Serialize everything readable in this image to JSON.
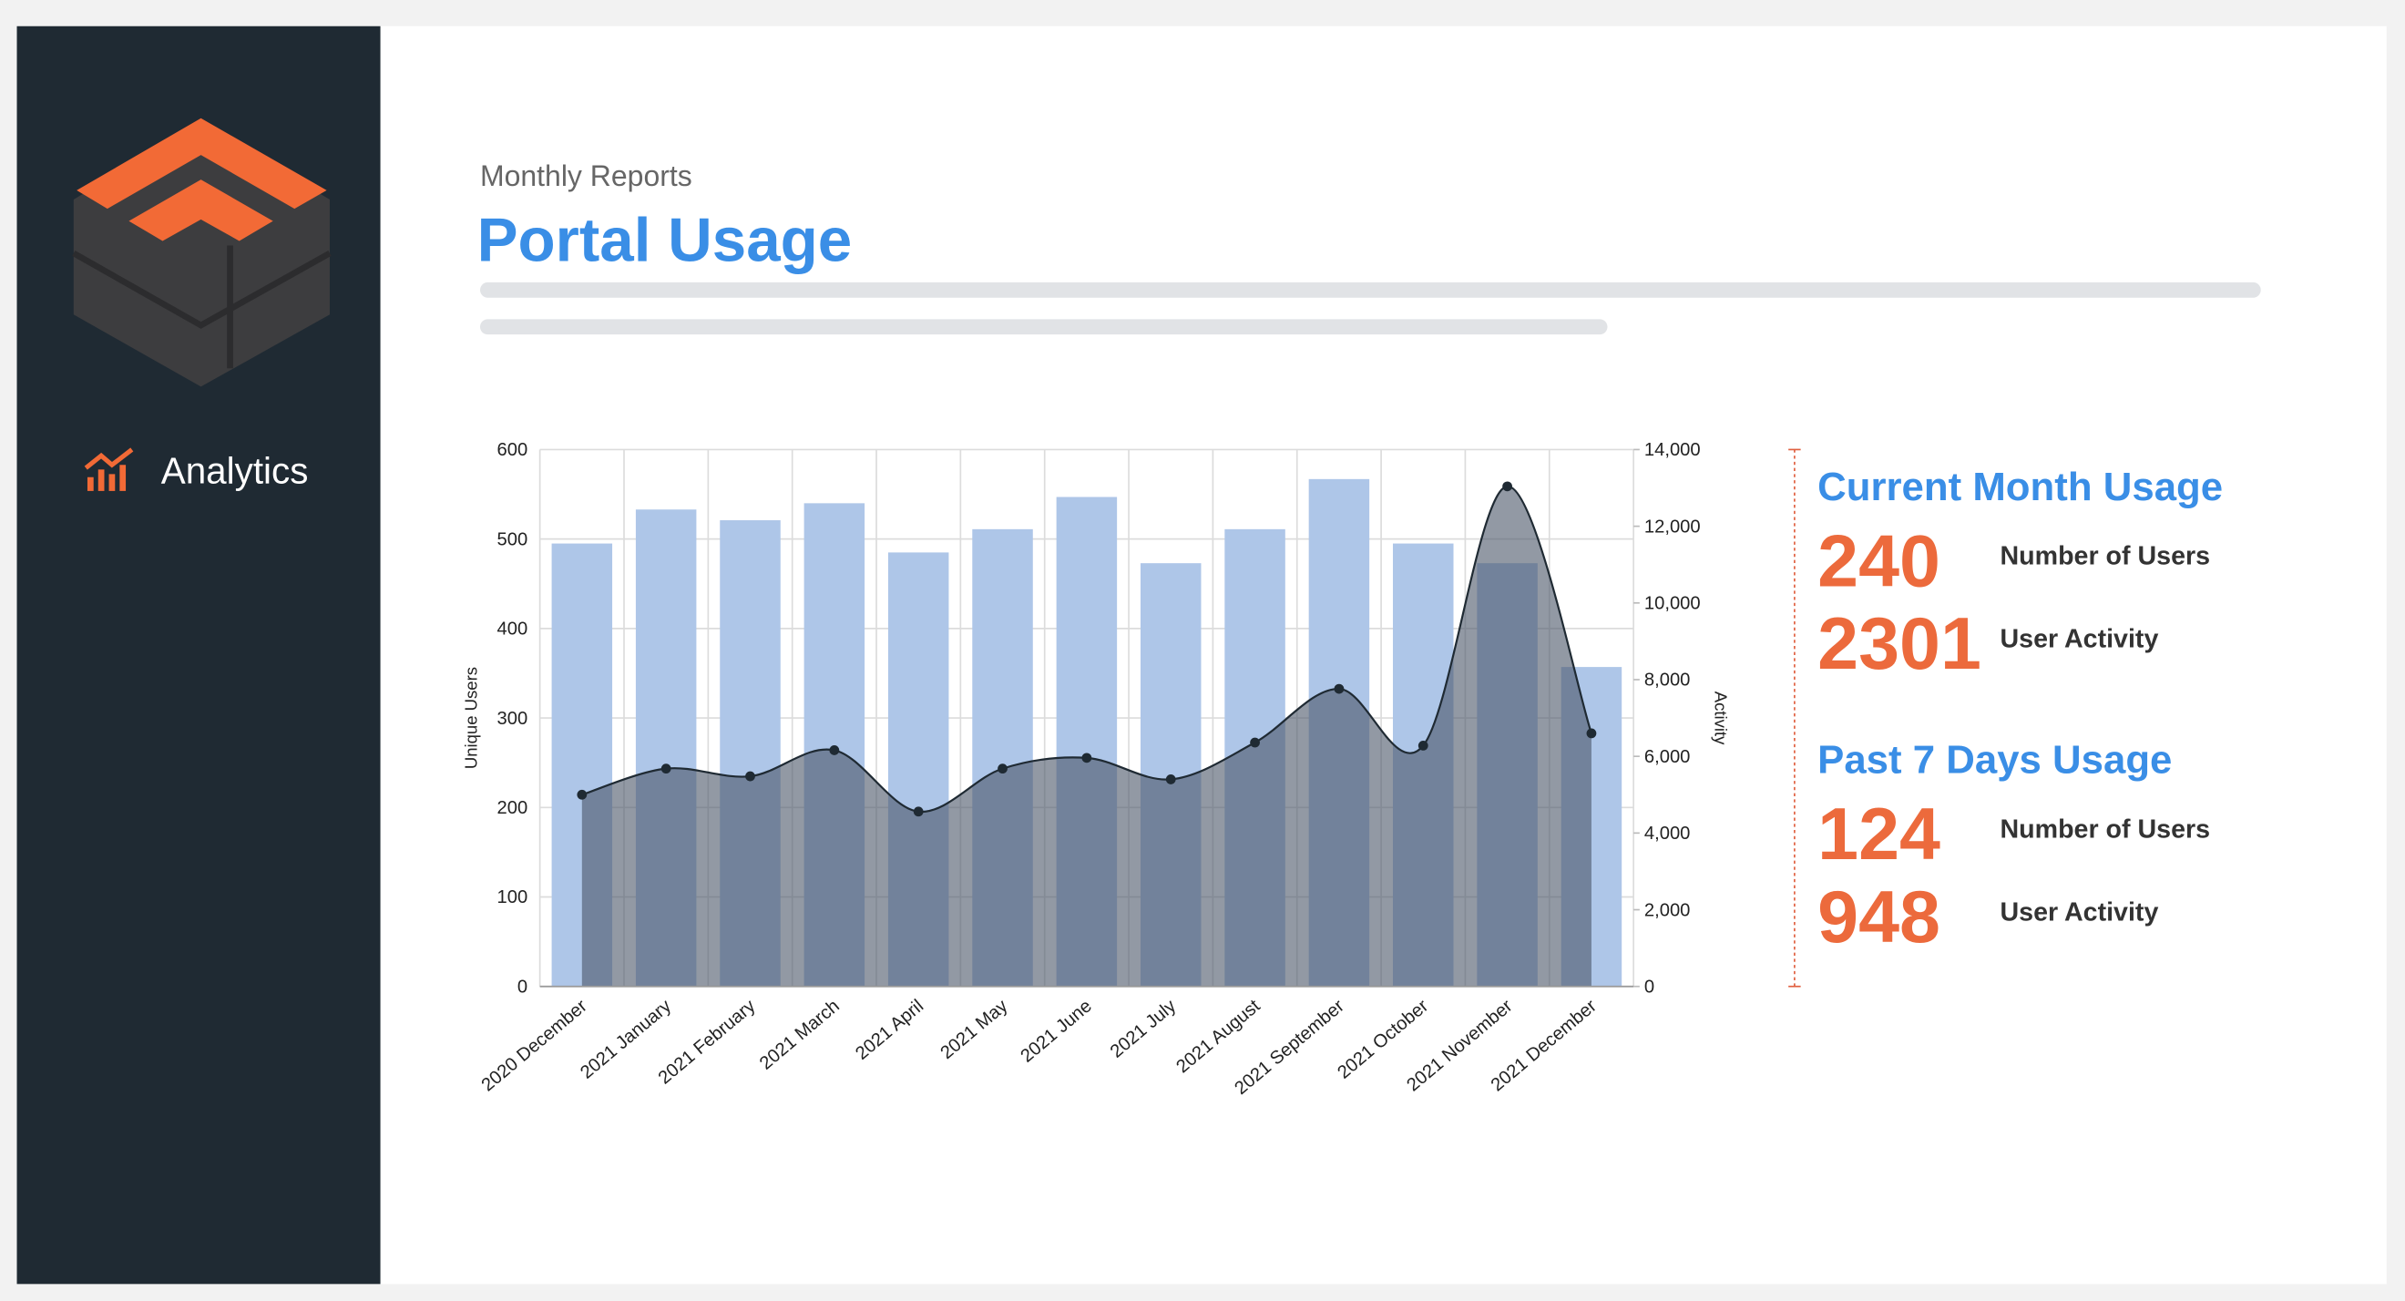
{
  "sidebar": {
    "nav": "Analytics"
  },
  "header": {
    "subtitle": "Monthly Reports",
    "title": "Portal Usage"
  },
  "chart_data": {
    "type": "bar",
    "categories": [
      "2020 December",
      "2021 January",
      "2021 February",
      "2021 March",
      "2021 April",
      "2021 May",
      "2021 June",
      "2021 July",
      "2021 August",
      "2021 September",
      "2021 October",
      "2021 November",
      "2021 December"
    ],
    "series": [
      {
        "type": "bar",
        "color": "#aec6e8",
        "values": [
          495,
          533,
          521,
          540,
          485,
          511,
          547,
          473,
          511,
          567,
          495,
          473,
          357
        ]
      },
      {
        "type": "area",
        "axis": "y2",
        "color": "#4a5568",
        "values": [
          5000,
          5680,
          5480,
          6160,
          4560,
          5680,
          5960,
          5400,
          6360,
          7760,
          6280,
          13040,
          6600
        ]
      }
    ],
    "ylabel": "Unique Users",
    "y2label": "Activity",
    "ylim": [
      0,
      600
    ],
    "yticks": [
      0,
      100,
      200,
      300,
      400,
      500,
      600
    ],
    "y2lim": [
      0,
      14000
    ],
    "y2ticks": [
      0,
      {
        "value": 2000,
        "label": "2,000"
      },
      {
        "value": 4000,
        "label": "4,000"
      },
      {
        "value": 6000,
        "label": "6,000"
      },
      {
        "value": 8000,
        "label": "8,000"
      },
      {
        "value": 10000,
        "label": "10,000"
      },
      {
        "value": 12000,
        "label": "12,000"
      },
      {
        "value": 14000,
        "label": "14,000"
      }
    ],
    "grid": true
  },
  "stats": [
    {
      "title": "Current Month Usage",
      "rows": [
        {
          "value": 240,
          "label": "Number of Users"
        },
        {
          "value": 2301,
          "label": "User Activity"
        }
      ]
    },
    {
      "title": "Past 7 Days Usage",
      "rows": [
        {
          "value": 124,
          "label": "Number of Users"
        },
        {
          "value": 948,
          "label": "User Activity"
        }
      ]
    }
  ]
}
